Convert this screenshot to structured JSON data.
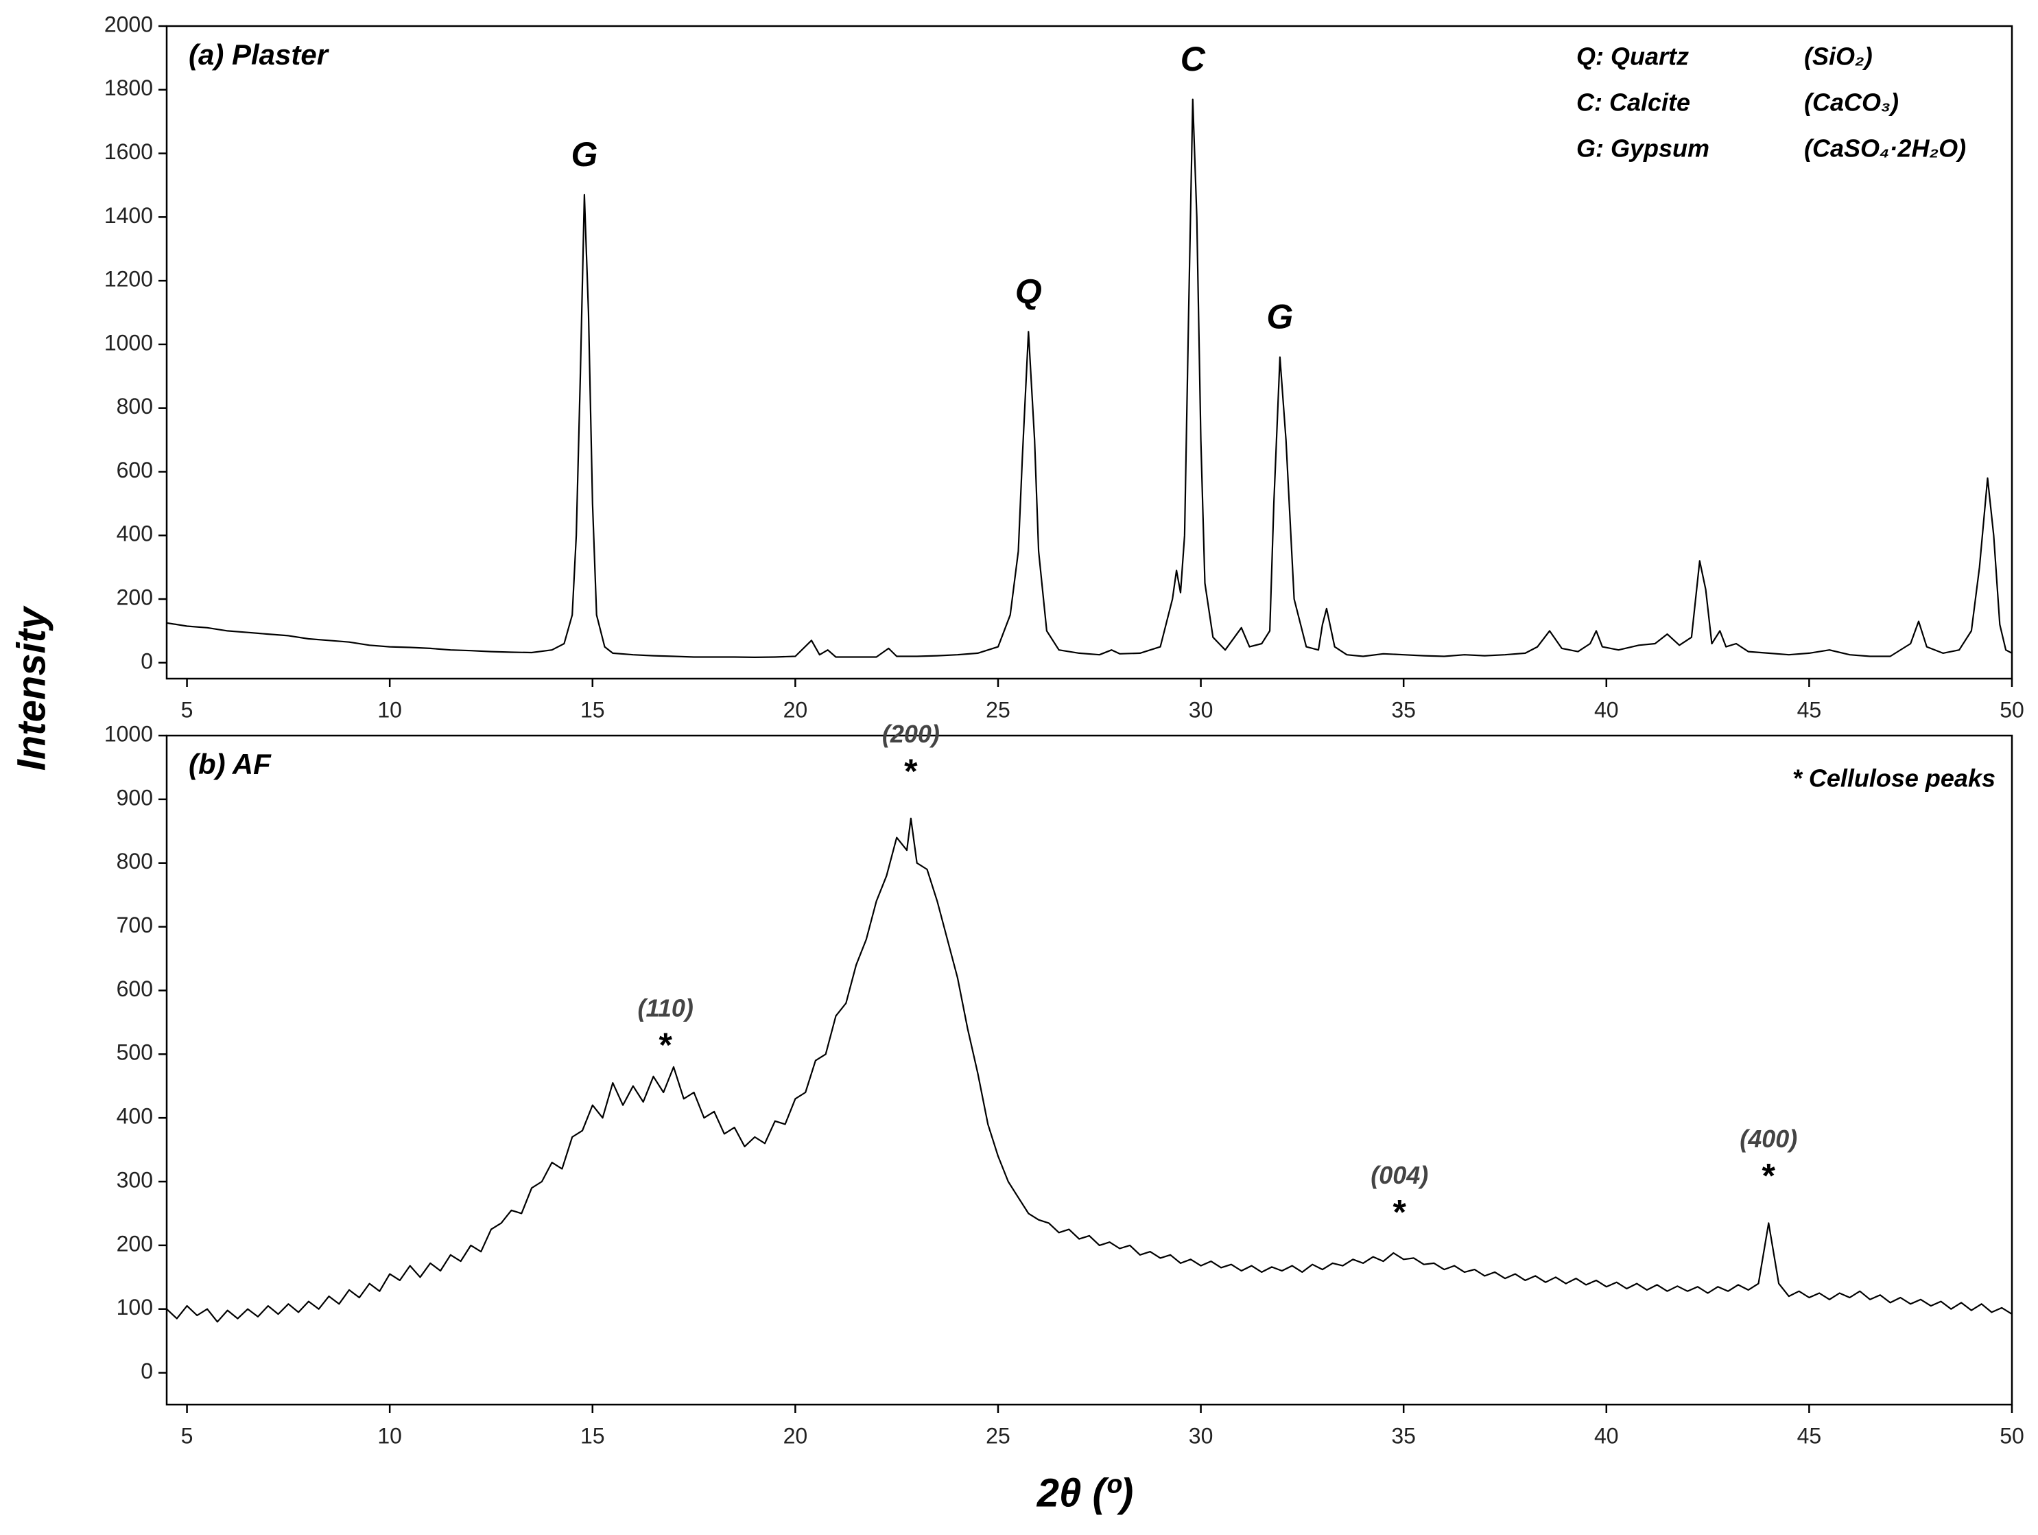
{
  "ylabel": "Intensity",
  "xlabel": "2θ (º)",
  "chart_data": [
    {
      "type": "line",
      "title": "(a) Plaster",
      "color": "#000000",
      "xlim": [
        4.5,
        50
      ],
      "xticks": [
        5,
        10,
        15,
        20,
        25,
        30,
        35,
        40,
        45,
        50
      ],
      "ylim": [
        -50,
        2000
      ],
      "yticks": [
        0,
        200,
        400,
        600,
        800,
        1000,
        1200,
        1400,
        1600,
        1800,
        2000
      ],
      "x": [
        4.5,
        5,
        5.5,
        6,
        6.5,
        7,
        7.5,
        8,
        8.5,
        9,
        9.5,
        10,
        10.5,
        11,
        11.5,
        12,
        12.5,
        13,
        13.5,
        14,
        14.3,
        14.5,
        14.6,
        14.7,
        14.8,
        14.9,
        15.0,
        15.1,
        15.3,
        15.5,
        16,
        16.5,
        17,
        17.5,
        18,
        18.5,
        19,
        19.5,
        20,
        20.4,
        20.6,
        20.8,
        21,
        21.5,
        22,
        22.3,
        22.5,
        23,
        23.5,
        24,
        24.5,
        25,
        25.3,
        25.5,
        25.6,
        25.75,
        25.9,
        26.0,
        26.2,
        26.5,
        27,
        27.5,
        27.8,
        28,
        28.5,
        29,
        29.3,
        29.4,
        29.5,
        29.6,
        29.7,
        29.8,
        29.9,
        30.0,
        30.1,
        30.3,
        30.6,
        31.0,
        31.2,
        31.5,
        31.7,
        31.8,
        31.95,
        32.1,
        32.3,
        32.6,
        32.9,
        33.0,
        33.1,
        33.3,
        33.6,
        34,
        34.5,
        35,
        35.5,
        36,
        36.5,
        37,
        37.5,
        38,
        38.3,
        38.6,
        38.9,
        39.3,
        39.6,
        39.75,
        39.9,
        40.3,
        40.8,
        41.2,
        41.5,
        41.8,
        42.1,
        42.3,
        42.45,
        42.6,
        42.8,
        42.95,
        43.2,
        43.5,
        44,
        44.5,
        45,
        45.5,
        46,
        46.5,
        47,
        47.5,
        47.7,
        47.9,
        48.3,
        48.7,
        49,
        49.2,
        49.4,
        49.55,
        49.7,
        49.85,
        50
      ],
      "values": [
        125,
        115,
        110,
        100,
        95,
        90,
        85,
        75,
        70,
        65,
        55,
        50,
        48,
        45,
        40,
        38,
        35,
        33,
        32,
        40,
        60,
        150,
        400,
        900,
        1470,
        1100,
        500,
        150,
        50,
        30,
        25,
        22,
        20,
        18,
        18,
        18,
        17,
        18,
        20,
        70,
        25,
        40,
        18,
        18,
        18,
        45,
        20,
        20,
        22,
        25,
        30,
        50,
        150,
        350,
        650,
        1040,
        700,
        350,
        100,
        40,
        30,
        25,
        40,
        28,
        30,
        50,
        200,
        290,
        220,
        400,
        1100,
        1770,
        1400,
        700,
        250,
        80,
        40,
        110,
        50,
        60,
        100,
        500,
        960,
        700,
        200,
        50,
        40,
        120,
        170,
        50,
        25,
        20,
        28,
        25,
        22,
        20,
        25,
        22,
        25,
        30,
        50,
        100,
        45,
        35,
        60,
        100,
        50,
        40,
        55,
        60,
        90,
        55,
        80,
        320,
        230,
        60,
        100,
        50,
        60,
        35,
        30,
        25,
        30,
        40,
        25,
        20,
        20,
        60,
        130,
        50,
        30,
        40,
        100,
        300,
        580,
        400,
        120,
        40,
        30
      ],
      "annotations": [
        {
          "text": "G",
          "x": 14.8
        },
        {
          "text": "Q",
          "x": 25.75
        },
        {
          "text": "C",
          "x": 29.8
        },
        {
          "text": "G",
          "x": 31.95
        }
      ],
      "legend_entries": [
        {
          "label": "Q: Quartz",
          "formula": "(SiO₂)"
        },
        {
          "label": "C: Calcite",
          "formula": "(CaCO₃)"
        },
        {
          "label": "G: Gypsum",
          "formula": "(CaSO₄·2H₂O)"
        }
      ]
    },
    {
      "type": "line",
      "title": "(b) AF",
      "color": "#000000",
      "note": "*  Cellulose peaks",
      "xlim": [
        4.5,
        50
      ],
      "xticks": [
        5,
        10,
        15,
        20,
        25,
        30,
        35,
        40,
        45,
        50
      ],
      "ylim": [
        -50,
        1000
      ],
      "yticks": [
        0,
        100,
        200,
        300,
        400,
        500,
        600,
        700,
        800,
        900,
        1000
      ],
      "x": [
        4.5,
        4.75,
        5,
        5.25,
        5.5,
        5.75,
        6,
        6.25,
        6.5,
        6.75,
        7,
        7.25,
        7.5,
        7.75,
        8,
        8.25,
        8.5,
        8.75,
        9,
        9.25,
        9.5,
        9.75,
        10,
        10.25,
        10.5,
        10.75,
        11,
        11.25,
        11.5,
        11.75,
        12,
        12.25,
        12.5,
        12.75,
        13,
        13.25,
        13.5,
        13.75,
        14,
        14.25,
        14.5,
        14.75,
        15,
        15.25,
        15.5,
        15.75,
        16,
        16.25,
        16.5,
        16.75,
        17,
        17.25,
        17.5,
        17.75,
        18,
        18.25,
        18.5,
        18.75,
        19,
        19.25,
        19.5,
        19.75,
        20,
        20.25,
        20.5,
        20.75,
        21,
        21.25,
        21.5,
        21.75,
        22,
        22.25,
        22.5,
        22.75,
        22.85,
        23,
        23.25,
        23.5,
        23.75,
        24,
        24.25,
        24.5,
        24.75,
        25,
        25.25,
        25.5,
        25.75,
        26,
        26.25,
        26.5,
        26.75,
        27,
        27.25,
        27.5,
        27.75,
        28,
        28.25,
        28.5,
        28.75,
        29,
        29.25,
        29.5,
        29.75,
        30,
        30.25,
        30.5,
        30.75,
        31,
        31.25,
        31.5,
        31.75,
        32,
        32.25,
        32.5,
        32.75,
        33,
        33.25,
        33.5,
        33.75,
        34,
        34.25,
        34.5,
        34.75,
        35,
        35.25,
        35.5,
        35.75,
        36,
        36.25,
        36.5,
        36.75,
        37,
        37.25,
        37.5,
        37.75,
        38,
        38.25,
        38.5,
        38.75,
        39,
        39.25,
        39.5,
        39.75,
        40,
        40.25,
        40.5,
        40.75,
        41,
        41.25,
        41.5,
        41.75,
        42,
        42.25,
        42.5,
        42.75,
        43,
        43.25,
        43.5,
        43.75,
        44.0,
        44.25,
        44.5,
        44.75,
        45,
        45.25,
        45.5,
        45.75,
        46,
        46.25,
        46.5,
        46.75,
        47,
        47.25,
        47.5,
        47.75,
        48,
        48.25,
        48.5,
        48.75,
        49,
        49.25,
        49.5,
        49.75,
        50
      ],
      "values": [
        100,
        85,
        105,
        90,
        100,
        80,
        98,
        85,
        100,
        88,
        105,
        92,
        108,
        95,
        112,
        100,
        120,
        108,
        130,
        118,
        140,
        128,
        155,
        145,
        168,
        150,
        172,
        160,
        185,
        175,
        200,
        190,
        225,
        235,
        255,
        250,
        290,
        300,
        330,
        320,
        370,
        380,
        420,
        400,
        455,
        420,
        450,
        425,
        465,
        440,
        480,
        430,
        440,
        400,
        410,
        375,
        385,
        355,
        370,
        360,
        395,
        390,
        430,
        440,
        490,
        500,
        560,
        580,
        640,
        680,
        740,
        780,
        840,
        820,
        870,
        800,
        790,
        740,
        680,
        620,
        540,
        470,
        390,
        340,
        300,
        275,
        250,
        240,
        235,
        220,
        225,
        210,
        215,
        200,
        205,
        195,
        200,
        185,
        190,
        180,
        185,
        172,
        178,
        168,
        175,
        165,
        170,
        160,
        168,
        158,
        166,
        160,
        168,
        158,
        170,
        162,
        172,
        168,
        178,
        172,
        182,
        175,
        188,
        178,
        180,
        170,
        172,
        162,
        168,
        158,
        162,
        152,
        158,
        148,
        155,
        145,
        152,
        142,
        150,
        140,
        148,
        138,
        145,
        135,
        142,
        132,
        140,
        130,
        138,
        128,
        136,
        128,
        135,
        125,
        135,
        128,
        138,
        130,
        140,
        235,
        140,
        120,
        128,
        118,
        125,
        115,
        125,
        118,
        128,
        115,
        122,
        110,
        118,
        108,
        115,
        105,
        112,
        100,
        110,
        98,
        108,
        95,
        102,
        92
      ],
      "annotations": [
        {
          "text": "(110)",
          "marker": "*",
          "x": 16.8
        },
        {
          "text": "(200)",
          "marker": "*",
          "x": 22.85
        },
        {
          "text": "(004)",
          "marker": "*",
          "x": 34.9
        },
        {
          "text": "(400)",
          "marker": "*",
          "x": 44.0
        }
      ]
    }
  ]
}
